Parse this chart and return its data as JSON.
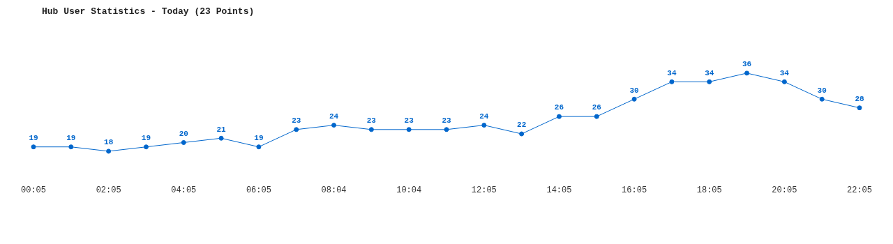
{
  "chart_data": {
    "type": "line",
    "title": "Hub User Statistics - Today (23 Points)",
    "categories": [
      "00:05",
      null,
      "02:05",
      null,
      "04:05",
      null,
      "06:05",
      null,
      "08:04",
      null,
      "10:04",
      null,
      "12:05",
      null,
      "14:05",
      null,
      "16:05",
      null,
      "18:05",
      null,
      "20:05",
      null,
      "22:05"
    ],
    "values": [
      19,
      19,
      18,
      19,
      20,
      21,
      19,
      23,
      24,
      23,
      23,
      23,
      24,
      22,
      26,
      26,
      30,
      34,
      34,
      36,
      34,
      30,
      28
    ],
    "color": "#0066cc",
    "marker": "circle",
    "data_labels": true,
    "grid": false,
    "legend": false
  }
}
